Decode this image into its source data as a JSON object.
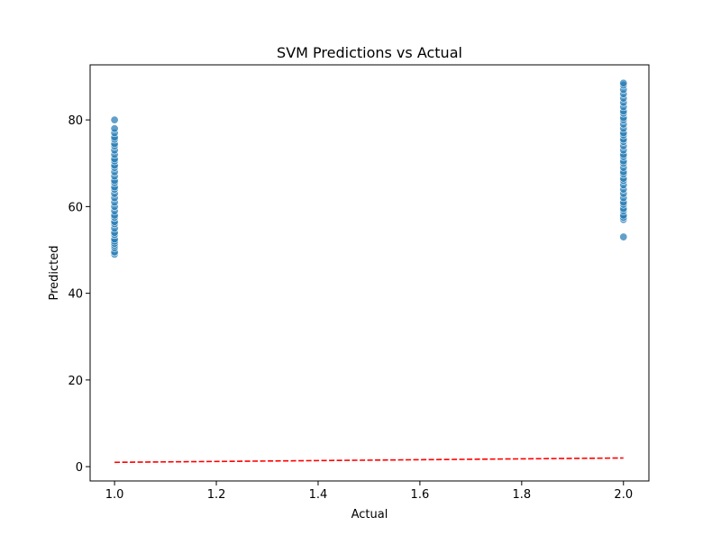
{
  "chart_data": {
    "type": "scatter",
    "title": "SVM Predictions vs Actual",
    "x_label": "Actual",
    "y_label": "Predicted",
    "xlim": [
      0.952,
      2.05
    ],
    "ylim": [
      -3.3,
      92.7
    ],
    "xticks": [
      {
        "value": 1.0,
        "label": "1.0"
      },
      {
        "value": 1.2,
        "label": "1.2"
      },
      {
        "value": 1.4,
        "label": "1.4"
      },
      {
        "value": 1.6,
        "label": "1.6"
      },
      {
        "value": 1.8,
        "label": "1.8"
      },
      {
        "value": 2.0,
        "label": "2.0"
      }
    ],
    "yticks": [
      0,
      20,
      40,
      60,
      80
    ],
    "grid": false,
    "series": [
      {
        "color": "#1f77b4",
        "x": [
          1,
          1,
          1,
          1,
          1,
          1,
          1,
          1,
          1,
          1,
          1,
          1,
          1,
          1,
          1,
          1,
          1,
          1,
          1,
          1,
          1,
          1,
          1,
          1,
          1,
          1,
          1,
          1,
          1,
          1,
          1,
          1,
          1,
          1,
          1,
          1,
          1,
          1,
          2,
          2,
          2,
          2,
          2,
          2,
          2,
          2,
          2,
          2,
          2,
          2,
          2,
          2,
          2,
          2,
          2,
          2,
          2,
          2,
          2,
          2,
          2,
          2,
          2,
          2,
          2,
          2,
          2,
          2,
          2,
          2,
          2,
          2,
          2,
          2,
          2,
          2,
          2,
          2
        ],
        "values": [
          49,
          49.5,
          50.5,
          51,
          51.5,
          52,
          52.5,
          53.5,
          54,
          55,
          56,
          56.5,
          57.5,
          58,
          59,
          60,
          61,
          62,
          63,
          64,
          64.5,
          65.5,
          66,
          67,
          68,
          69,
          69.5,
          70.5,
          71,
          72,
          73,
          74,
          74.5,
          75.5,
          76,
          77,
          78,
          80,
          53,
          57,
          57.5,
          58,
          59,
          59.5,
          60.5,
          61,
          62,
          63,
          64,
          65,
          66,
          66.5,
          67.5,
          68,
          69,
          70,
          70.5,
          71.5,
          72,
          73,
          74,
          75,
          75.5,
          76.5,
          77,
          78,
          79,
          80,
          80.5,
          81.5,
          82,
          83,
          84,
          85,
          86,
          87,
          88,
          88.5
        ]
      }
    ],
    "reference_line": {
      "x": [
        1,
        2
      ],
      "values": [
        1,
        2
      ],
      "color": "#ff0000",
      "dashed": true
    }
  }
}
